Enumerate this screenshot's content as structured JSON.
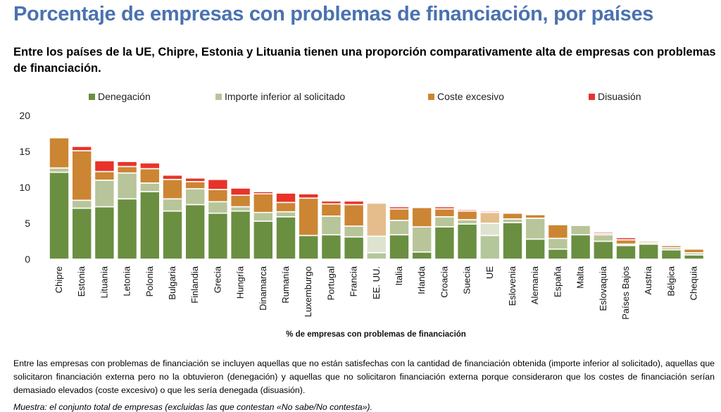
{
  "header": {
    "title": "Porcentaje de empresas con problemas de financiación, por países",
    "subtitle": "Entre los países de la UE, Chipre, Estonia y Lituania tienen una proporción comparativamente alta de empresas con problemas de financiación."
  },
  "chart_data": {
    "type": "bar",
    "stacked": true,
    "title": "",
    "xlabel": "% de empresas con problemas de financiación",
    "ylabel": "",
    "ylim": [
      0,
      20
    ],
    "yticks": [
      0,
      5,
      10,
      15,
      20
    ],
    "grid": false,
    "legend_position": "top",
    "categories": [
      "Chipre",
      "Estonia",
      "Lituania",
      "Letonia",
      "Polonia",
      "Bulgaria",
      "Finlandia",
      "Grecia",
      "Hungría",
      "Dinamarca",
      "Rumanía",
      "Luxemburgo",
      "Portugal",
      "Francia",
      "EE. UU.",
      "Italia",
      "Irlanda",
      "Croacia",
      "Suecia",
      "UE",
      "Eslovenia",
      "Alemania",
      "España",
      "Malta",
      "Eslovaquia",
      "Países Bajos",
      "Austria",
      "Bélgica",
      "Chequia"
    ],
    "highlighted_categories": [
      "EE. UU.",
      "UE"
    ],
    "series": [
      {
        "name": "Denegación",
        "color": "#6A8F41",
        "faded_color": "#B3C79B",
        "values": [
          12.1,
          7.1,
          7.3,
          8.4,
          9.4,
          6.7,
          7.6,
          6.4,
          6.7,
          5.3,
          5.9,
          3.3,
          3.4,
          3.1,
          0.9,
          3.4,
          1.0,
          4.5,
          4.9,
          3.3,
          5.1,
          2.8,
          1.4,
          3.4,
          2.5,
          1.9,
          2.1,
          1.3,
          0.6
        ]
      },
      {
        "name": "Importe inferior al solicitado",
        "color": "#B8C59A",
        "faded_color": "#DDE3CF",
        "values": [
          0.6,
          1.1,
          3.7,
          3.6,
          1.2,
          1.7,
          2.2,
          1.6,
          0.6,
          1.2,
          0.7,
          0.0,
          2.6,
          1.5,
          2.3,
          2.0,
          3.5,
          1.4,
          0.6,
          1.7,
          0.5,
          2.9,
          1.5,
          1.3,
          0.9,
          0.2,
          0.2,
          0.3,
          0.3
        ]
      },
      {
        "name": "Coste excesivo",
        "color": "#CC8533",
        "faded_color": "#E5BD8C",
        "values": [
          4.2,
          6.9,
          1.2,
          0.9,
          2.0,
          2.7,
          1.0,
          1.7,
          1.6,
          2.6,
          1.3,
          5.2,
          1.7,
          3.0,
          4.6,
          1.6,
          2.7,
          1.1,
          1.2,
          1.5,
          0.8,
          0.5,
          1.9,
          0.0,
          0.2,
          0.6,
          0.2,
          0.3,
          0.5
        ]
      },
      {
        "name": "Disuasión",
        "color": "#E8332A",
        "faded_color": "#EF8A80",
        "values": [
          0.0,
          0.6,
          1.5,
          0.7,
          0.8,
          0.6,
          0.5,
          1.4,
          1.0,
          0.3,
          1.3,
          0.6,
          0.4,
          0.5,
          0.0,
          0.3,
          0.1,
          0.3,
          0.2,
          0.2,
          0.0,
          0.0,
          0.0,
          0.0,
          0.2,
          0.3,
          0.0,
          0.1,
          0.0
        ]
      }
    ]
  },
  "notes": {
    "definition": "Entre las empresas con problemas de financiación se incluyen aquellas que no están satisfechas con la cantidad de financiación obtenida (importe inferior al solicitado), aquellas que solicitaron financiación externa pero no la obtuvieron (denegación) y aquellas que no solicitaron financiación externa porque consideraron que los costes de financiación serían demasiado elevados (coste excesivo) o que les sería denegada (disuasión).",
    "sample": "Muestra: el conjunto total de empresas (excluidas las que contestan «No sabe/No contesta»)."
  }
}
